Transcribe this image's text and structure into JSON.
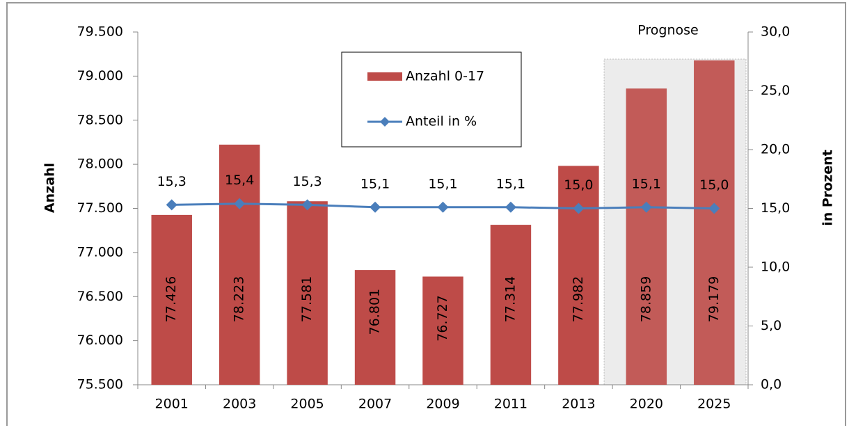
{
  "chart_data": {
    "type": "bar",
    "categories": [
      "2001",
      "2003",
      "2005",
      "2007",
      "2009",
      "2011",
      "2013",
      "2020",
      "2025"
    ],
    "series": [
      {
        "name": "Anzahl 0-17",
        "color": "#be4b48",
        "values": [
          77426,
          78223,
          77581,
          76801,
          76727,
          77314,
          77982,
          78859,
          79179
        ],
        "value_labels": [
          "77.426",
          "78.223",
          "77.581",
          "76.801",
          "76.727",
          "77.314",
          "77.982",
          "78.859",
          "79.179"
        ]
      },
      {
        "name": "Anteil in %",
        "color": "#4a7ebb",
        "type": "line",
        "axis": "y2",
        "values": [
          15.3,
          15.4,
          15.3,
          15.1,
          15.1,
          15.1,
          15.0,
          15.1,
          15.0
        ],
        "value_labels": [
          "15,3",
          "15,4",
          "15,3",
          "15,1",
          "15,1",
          "15,1",
          "15,0",
          "15,1",
          "15,0"
        ]
      }
    ],
    "ylabel": "Anzahl",
    "y2label": "in Prozent",
    "annotation": "Prognose",
    "ylim": [
      75500,
      79500
    ],
    "yticks": [
      {
        "value": 75500,
        "label": "75.500"
      },
      {
        "value": 76000,
        "label": "76.000"
      },
      {
        "value": 76500,
        "label": "76.500"
      },
      {
        "value": 77000,
        "label": "77.000"
      },
      {
        "value": 77500,
        "label": "77.500"
      },
      {
        "value": 78000,
        "label": "78.000"
      },
      {
        "value": 78500,
        "label": "78.500"
      },
      {
        "value": 79000,
        "label": "79.000"
      },
      {
        "value": 79500,
        "label": "79.500"
      }
    ],
    "y2lim": [
      0,
      30
    ],
    "y2ticks": [
      {
        "value": 0,
        "label": "0,0"
      },
      {
        "value": 5,
        "label": "5,0"
      },
      {
        "value": 10,
        "label": "10,0"
      },
      {
        "value": 15,
        "label": "15,0"
      },
      {
        "value": 20,
        "label": "20,0"
      },
      {
        "value": 25,
        "label": "25,0"
      },
      {
        "value": 30,
        "label": "30,0"
      }
    ]
  }
}
